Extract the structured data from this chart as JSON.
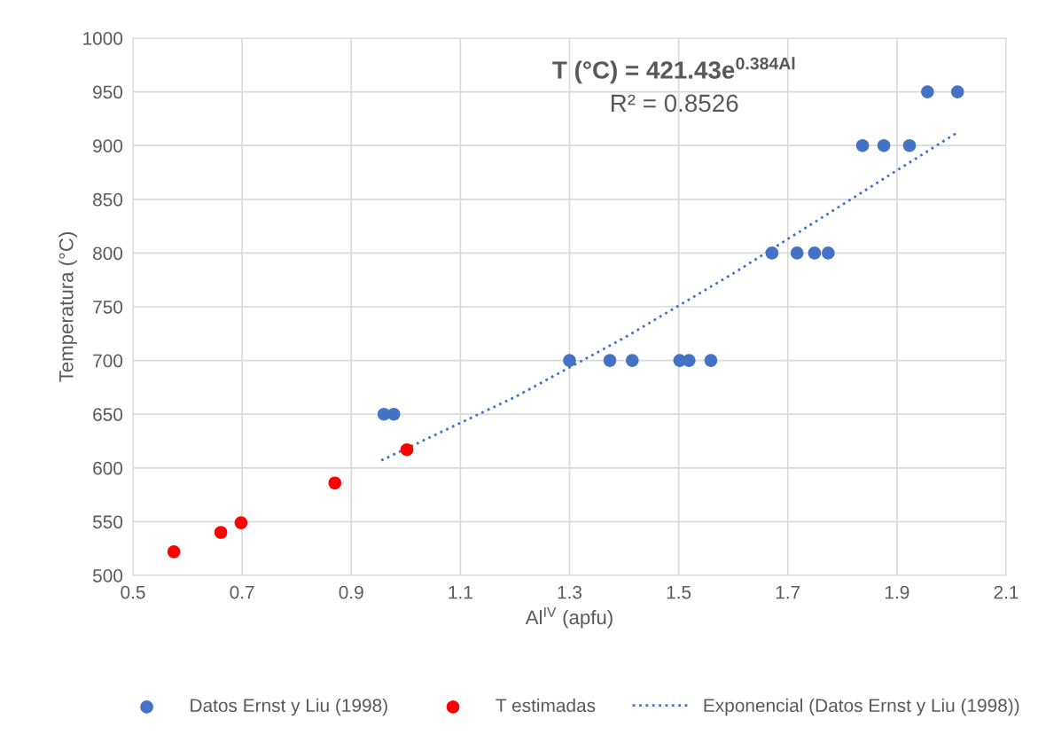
{
  "chart_data": {
    "type": "scatter",
    "xlabel": "Al$^{IV}$ (apfu)",
    "ylabel": "Temperatura (°C)",
    "xlim": [
      0.5,
      2.1
    ],
    "xticks": [
      0.5,
      0.7,
      0.9,
      1.1,
      1.3,
      1.5,
      1.7,
      1.9,
      2.1
    ],
    "ylim": [
      500,
      1000
    ],
    "yticks": [
      500,
      550,
      600,
      650,
      700,
      750,
      800,
      850,
      900,
      950,
      1000
    ],
    "grid": true,
    "legend": "bottom",
    "annotations": [
      "T (°C) = 421.43e$^{0.384Al}$",
      "R² = 0.8526"
    ],
    "series": [
      {
        "name": "Datos Ernst y Liu (1998)",
        "color": "#4472c4",
        "marker": "circle",
        "x": [
          0.96,
          0.978,
          1.3,
          1.374,
          1.415,
          1.502,
          1.519,
          1.559,
          1.671,
          1.717,
          1.749,
          1.774,
          1.837,
          1.876,
          1.923,
          1.956,
          2.011
        ],
        "values": [
          650,
          650,
          700,
          700,
          700,
          700,
          700,
          700,
          800,
          800,
          800,
          800,
          900,
          900,
          900,
          950,
          950
        ]
      },
      {
        "name": "T estimadas",
        "color": "#ff0000",
        "marker": "circle",
        "x": [
          0.575,
          0.661,
          0.698,
          0.87,
          1.002
        ],
        "values": [
          522,
          540,
          549,
          586,
          617
        ]
      },
      {
        "name": "Exponencial (Datos Ernst y Liu (1998))",
        "type": "line",
        "color": "#4472c4",
        "marker": "none",
        "line_style": "dotted",
        "x": [
          0.955,
          1.2,
          1.4,
          1.6,
          1.8,
          2.01
        ],
        "values": [
          607,
          666,
          721,
          781,
          845,
          912
        ]
      }
    ]
  }
}
